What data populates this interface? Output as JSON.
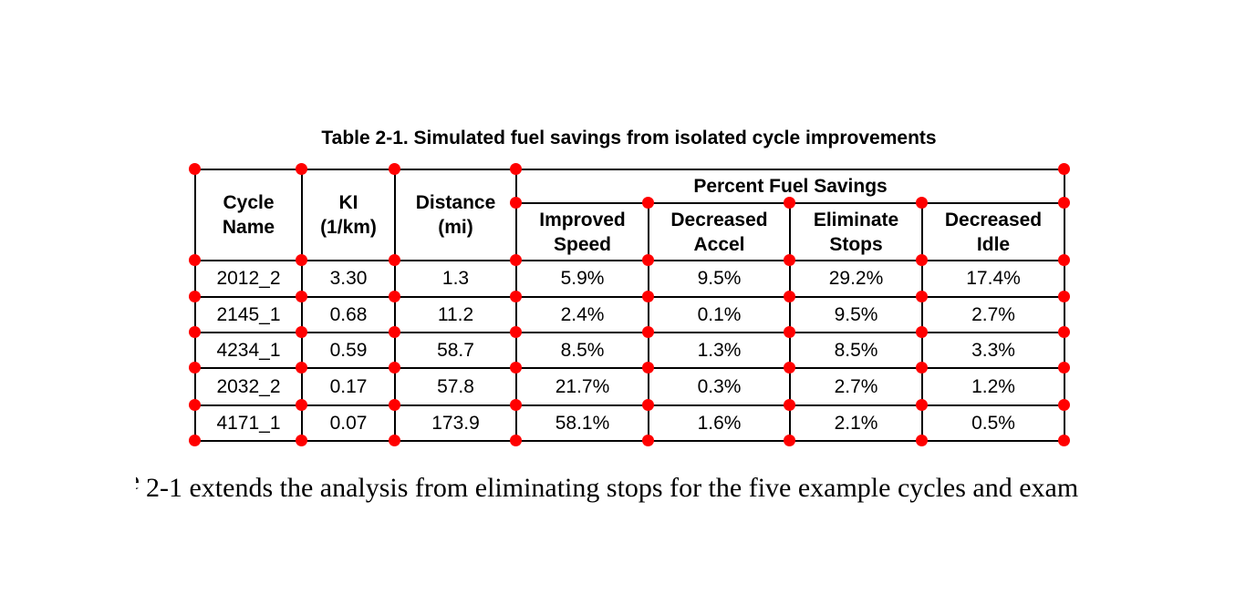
{
  "caption": "Table 2-1. Simulated fuel savings from isolated cycle improvements",
  "table": {
    "header": {
      "cycle_name": "Cycle\nName",
      "ki": "KI\n(1/km)",
      "distance": "Distance\n(mi)",
      "group": "Percent Fuel Savings",
      "improved_speed": "Improved\nSpeed",
      "decreased_accel": "Decreased\nAccel",
      "eliminate_stops": "Eliminate\nStops",
      "decreased_idle": "Decreased\nIdle"
    },
    "rows": [
      [
        "2012_2",
        "3.30",
        "1.3",
        "5.9%",
        "9.5%",
        "29.2%",
        "17.4%"
      ],
      [
        "2145_1",
        "0.68",
        "11.2",
        "2.4%",
        "0.1%",
        "9.5%",
        "2.7%"
      ],
      [
        "4234_1",
        "0.59",
        "58.7",
        "8.5%",
        "1.3%",
        "8.5%",
        "3.3%"
      ],
      [
        "2032_2",
        "0.17",
        "57.8",
        "21.7%",
        "0.3%",
        "2.7%",
        "1.2%"
      ],
      [
        "4171_1",
        "0.07",
        "173.9",
        "58.1%",
        "1.6%",
        "2.1%",
        "0.5%"
      ]
    ]
  },
  "body_text": {
    "leading_fragment": "e",
    "line": "2-1 extends the analysis from eliminating stops for the five example cycles and exam"
  },
  "colors": {
    "marker_red": "#ff0000",
    "border_black": "#000000",
    "text_black": "#000000"
  }
}
